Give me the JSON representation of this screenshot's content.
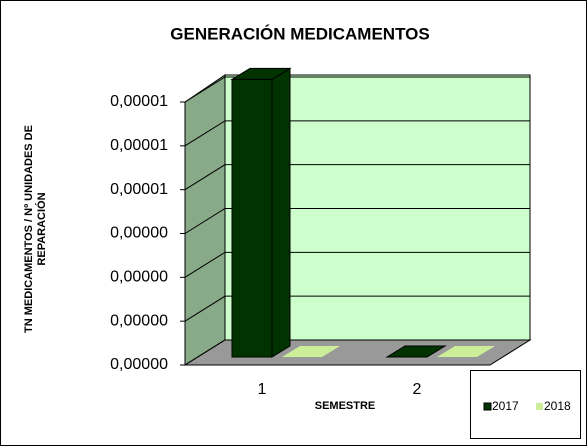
{
  "chart_data": {
    "type": "bar3d",
    "title": "GENERACIÓN MEDICAMENTOS",
    "x_label": "SEMESTRE",
    "y_label": "TN MEDICAMENTOS / Nº UNIDADES DE REPARACIÓN",
    "categories": [
      "1",
      "2"
    ],
    "series": [
      {
        "name": "2017",
        "color": "#003300",
        "values": [
          9.5e-06,
          0
        ]
      },
      {
        "name": "2018",
        "color": "#ccee99",
        "values": [
          0,
          0
        ]
      }
    ],
    "ylim": [
      0,
      9e-06
    ],
    "yticks": [
      {
        "value": 0,
        "label": "0,00000"
      },
      {
        "value": 1.5e-06,
        "label": "0,00000"
      },
      {
        "value": 3e-06,
        "label": "0,00000"
      },
      {
        "value": 4.5e-06,
        "label": "0,00000"
      },
      {
        "value": 6e-06,
        "label": "0,00001"
      },
      {
        "value": 7.5e-06,
        "label": "0,00001"
      },
      {
        "value": 9e-06,
        "label": "0,00001"
      }
    ],
    "grid": true,
    "legend": "bottom-right"
  }
}
